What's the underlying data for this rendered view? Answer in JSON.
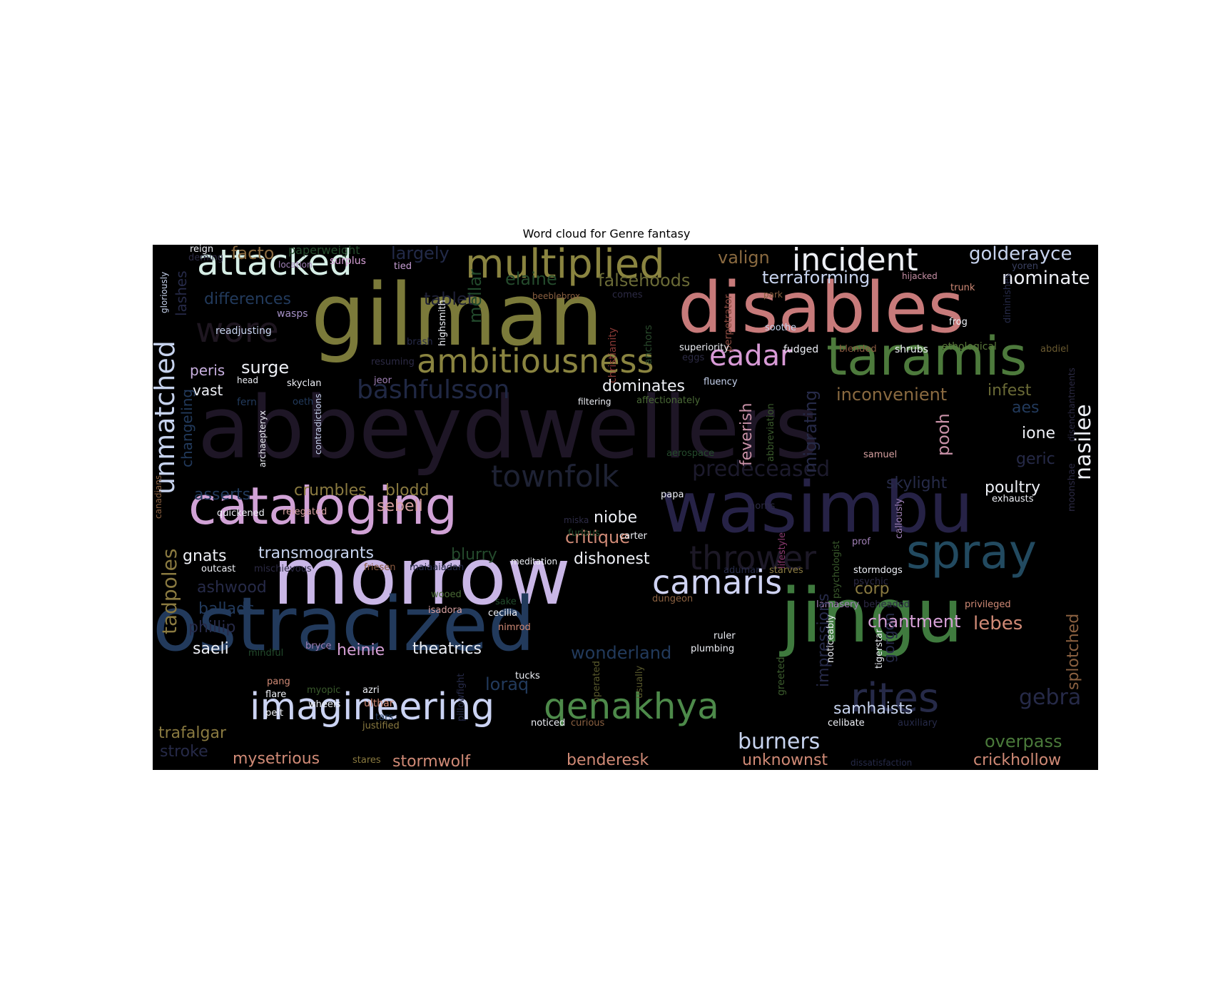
{
  "title": "Word cloud for Genre fantasy",
  "words": [
    {
      "text": "abbeydwellers",
      "color": "#1e1626"
    },
    {
      "text": "gilman",
      "color": "#7b7a3a"
    },
    {
      "text": "disables",
      "color": "#c77a7a"
    },
    {
      "text": "wasimbu",
      "color": "#262246"
    },
    {
      "text": "morrow",
      "color": "#c9b6e6"
    },
    {
      "text": "ostracized",
      "color": "#223a5c"
    },
    {
      "text": "jingu",
      "color": "#3f7a3e"
    },
    {
      "text": "cataloging",
      "color": "#d1a2d6"
    },
    {
      "text": "taramis",
      "color": "#4d7a3c"
    },
    {
      "text": "spray",
      "color": "#224a60"
    },
    {
      "text": "multiplied",
      "color": "#8a8440"
    },
    {
      "text": "attacked",
      "color": "#d6eee6"
    },
    {
      "text": "ambitiousness",
      "color": "#8a8440"
    },
    {
      "text": "incident",
      "color": "#eef0f6"
    },
    {
      "text": "wore",
      "color": "#1e1620"
    },
    {
      "text": "unmatched",
      "color": "#c7d3ee"
    },
    {
      "text": "camaris",
      "color": "#cfd3f3"
    },
    {
      "text": "imagineering",
      "color": "#cbd3f3"
    },
    {
      "text": "qenakhya",
      "color": "#4d8a4a"
    },
    {
      "text": "rites",
      "color": "#262a48"
    },
    {
      "text": "townfolk",
      "color": "#1e2234"
    },
    {
      "text": "thrower",
      "color": "#1c1826"
    },
    {
      "text": "predeceased",
      "color": "#1c1a2c"
    },
    {
      "text": "bashfulsson",
      "color": "#202844"
    },
    {
      "text": "eadar",
      "color": "#d89ad6"
    },
    {
      "text": "golderayce",
      "color": "#c7d3ee"
    },
    {
      "text": "nominate",
      "color": "#eef0f6"
    },
    {
      "text": "terraforming",
      "color": "#c7d3ee"
    },
    {
      "text": "valign",
      "color": "#8a6a40"
    },
    {
      "text": "elaine",
      "color": "#244a2c"
    },
    {
      "text": "falsehoods",
      "color": "#6a6a36"
    },
    {
      "text": "facto",
      "color": "#8a6a40"
    },
    {
      "text": "largely",
      "color": "#222a48"
    },
    {
      "text": "paperweight",
      "color": "#244a2c"
    },
    {
      "text": "reign",
      "color": "#eef0f6"
    },
    {
      "text": "deming",
      "color": "#2c2a44"
    },
    {
      "text": "differences",
      "color": "#223a5c"
    },
    {
      "text": "readjusting",
      "color": "#c7d3ee"
    },
    {
      "text": "wasps",
      "color": "#a590c6"
    },
    {
      "text": "location",
      "color": "#a080b6"
    },
    {
      "text": "surplus",
      "color": "#d6a0d6"
    },
    {
      "text": "tied",
      "color": "#c9a0d6"
    },
    {
      "text": "tablet",
      "color": "#1e2036"
    },
    {
      "text": "highsmith",
      "color": "#eef0f6"
    },
    {
      "text": "mellar",
      "color": "#224a2c"
    },
    {
      "text": "beeblebrox",
      "color": "#8a6040"
    },
    {
      "text": "christianity",
      "color": "#8a3a36"
    },
    {
      "text": "anchors",
      "color": "#2a4a2c"
    },
    {
      "text": "perpetrator",
      "color": "#8a4a40"
    },
    {
      "text": "park",
      "color": "#8a6040"
    },
    {
      "text": "soothe",
      "color": "#c7d3ee"
    },
    {
      "text": "hijacked",
      "color": "#c790a6"
    },
    {
      "text": "trunk",
      "color": "#d08a76"
    },
    {
      "text": "frog",
      "color": "#eef0f6"
    },
    {
      "text": "diminishes",
      "color": "#262a48"
    },
    {
      "text": "yoren",
      "color": "#3a4060"
    },
    {
      "text": "abdiel",
      "color": "#6a5a30"
    },
    {
      "text": "ethological",
      "color": "#5a7a3a"
    },
    {
      "text": "shrubs",
      "color": "#eef0f6"
    },
    {
      "text": "blended",
      "color": "#8a5a40"
    },
    {
      "text": "fudged",
      "color": "#eef0f6"
    },
    {
      "text": "superiority",
      "color": "#eef0f6"
    },
    {
      "text": "eggs",
      "color": "#2c2a44"
    },
    {
      "text": "fluency",
      "color": "#c7d3ee"
    },
    {
      "text": "affectionately",
      "color": "#4a6a36"
    },
    {
      "text": "filtering",
      "color": "#eef0f6"
    },
    {
      "text": "dominates",
      "color": "#eef0f6"
    },
    {
      "text": "surge",
      "color": "#eef0f6"
    },
    {
      "text": "peris",
      "color": "#c9b0e0"
    },
    {
      "text": "vast",
      "color": "#eef0f6"
    },
    {
      "text": "head",
      "color": "#eef0f6"
    },
    {
      "text": "skyclan",
      "color": "#eef0f6"
    },
    {
      "text": "jeor",
      "color": "#a080b6"
    },
    {
      "text": "fern",
      "color": "#223a5c"
    },
    {
      "text": "oeth",
      "color": "#223a5c"
    },
    {
      "text": "inconvenient",
      "color": "#8a6a40"
    },
    {
      "text": "infest",
      "color": "#6a6a36"
    },
    {
      "text": "aes",
      "color": "#223a5c"
    },
    {
      "text": "ione",
      "color": "#eef0f6"
    },
    {
      "text": "nasilee",
      "color": "#eef0f6"
    },
    {
      "text": "geric",
      "color": "#262a48"
    },
    {
      "text": "poultry",
      "color": "#eef0f6"
    },
    {
      "text": "exhausts",
      "color": "#eef0f6"
    },
    {
      "text": "skylight",
      "color": "#262a48"
    },
    {
      "text": "samuel",
      "color": "#d6a0a0"
    },
    {
      "text": "pooh",
      "color": "#c790a6"
    },
    {
      "text": "feverish",
      "color": "#c790a6"
    },
    {
      "text": "migrating",
      "color": "#262a48"
    },
    {
      "text": "abbreviation",
      "color": "#3a5a2c"
    },
    {
      "text": "aerospace",
      "color": "#244a2c"
    },
    {
      "text": "papa",
      "color": "#eef0f6"
    },
    {
      "text": "crumbles",
      "color": "#8a7a40"
    },
    {
      "text": "blodd",
      "color": "#8a7a40"
    },
    {
      "text": "sebell",
      "color": "#d6a0a0"
    },
    {
      "text": "asserts",
      "color": "#223a5c"
    },
    {
      "text": "quickened",
      "color": "#eef0f6"
    },
    {
      "text": "relegated",
      "color": "#d6a0a0"
    },
    {
      "text": "changeling",
      "color": "#223a5c"
    },
    {
      "text": "archaepteryx",
      "color": "#eef0f6"
    },
    {
      "text": "contradictions",
      "color": "#c7d3ee"
    },
    {
      "text": "niobe",
      "color": "#eef0f6"
    },
    {
      "text": "critique",
      "color": "#d08a76"
    },
    {
      "text": "dishonest",
      "color": "#eef0f6"
    },
    {
      "text": "carter",
      "color": "#eef0f6"
    },
    {
      "text": "furious",
      "color": "#224a2c"
    },
    {
      "text": "miska",
      "color": "#2c2a44"
    },
    {
      "text": "meditation",
      "color": "#eef0f6"
    },
    {
      "text": "blurry",
      "color": "#244a2c"
    },
    {
      "text": "transmogrants",
      "color": "#c7d3ee"
    },
    {
      "text": "gnats",
      "color": "#eef0f6"
    },
    {
      "text": "outcast",
      "color": "#eef0f6"
    },
    {
      "text": "mischievous",
      "color": "#2c2a44"
    },
    {
      "text": "friesen",
      "color": "#8a5a40"
    },
    {
      "text": "maiaaiadan",
      "color": "#262a48"
    },
    {
      "text": "tadpoles",
      "color": "#8a7a40"
    },
    {
      "text": "ashwood",
      "color": "#262a48"
    },
    {
      "text": "ballads",
      "color": "#223a5c"
    },
    {
      "text": "phillip",
      "color": "#262a48"
    },
    {
      "text": "saeli",
      "color": "#eef0f6"
    },
    {
      "text": "heinie",
      "color": "#d6a0d6"
    },
    {
      "text": "theatrics",
      "color": "#eef0f6"
    },
    {
      "text": "mindful",
      "color": "#224a2c"
    },
    {
      "text": "bryce",
      "color": "#a080b6"
    },
    {
      "text": "isadora",
      "color": "#d6a0a0"
    },
    {
      "text": "cecilia",
      "color": "#eef0f6"
    },
    {
      "text": "wooed",
      "color": "#4a6a36"
    },
    {
      "text": "sake",
      "color": "#224a2c"
    },
    {
      "text": "nimrod",
      "color": "#d08a76"
    },
    {
      "text": "dungeon",
      "color": "#8a6040"
    },
    {
      "text": "wonderland",
      "color": "#223a5c"
    },
    {
      "text": "plumbing",
      "color": "#eef0f6"
    },
    {
      "text": "ruler",
      "color": "#eef0f6"
    },
    {
      "text": "adumar",
      "color": "#262a48"
    },
    {
      "text": "starves",
      "color": "#8a7a40"
    },
    {
      "text": "lifestyle",
      "color": "#8a3a70"
    },
    {
      "text": "psychologist",
      "color": "#3a5a2c"
    },
    {
      "text": "prof",
      "color": "#a080b6"
    },
    {
      "text": "callously",
      "color": "#a080b6"
    },
    {
      "text": "norns",
      "color": "#2c2a44"
    },
    {
      "text": "psychic",
      "color": "#2c2a44"
    },
    {
      "text": "stormdogs",
      "color": "#eef0f6"
    },
    {
      "text": "corp",
      "color": "#8a7a40"
    },
    {
      "text": "lamasery",
      "color": "#a080b6"
    },
    {
      "text": "beheaded",
      "color": "#2c2a44"
    },
    {
      "text": "chantment",
      "color": "#d6a0d6"
    },
    {
      "text": "privileged",
      "color": "#d08a76"
    },
    {
      "text": "lebes",
      "color": "#d08a76"
    },
    {
      "text": "splotched",
      "color": "#8a6040"
    },
    {
      "text": "moonshae",
      "color": "#2c2a44"
    },
    {
      "text": "gebra",
      "color": "#262a48"
    },
    {
      "text": "impressions",
      "color": "#262a48"
    },
    {
      "text": "noticeably",
      "color": "#eef0f6"
    },
    {
      "text": "tigerstar",
      "color": "#eef0f6"
    },
    {
      "text": "gorgon",
      "color": "#262a48"
    },
    {
      "text": "greeted",
      "color": "#3a5a2c"
    },
    {
      "text": "samhaists",
      "color": "#c7d3ee"
    },
    {
      "text": "celibate",
      "color": "#eef0f6"
    },
    {
      "text": "auxiliary",
      "color": "#262a48"
    },
    {
      "text": "overpass",
      "color": "#4a7a3a"
    },
    {
      "text": "crickhollow",
      "color": "#d08a76"
    },
    {
      "text": "dissatisfaction",
      "color": "#262a48"
    },
    {
      "text": "unknownst",
      "color": "#d08a76"
    },
    {
      "text": "burners",
      "color": "#c7d3ee"
    },
    {
      "text": "benderesk",
      "color": "#d08a76"
    },
    {
      "text": "stormwolf",
      "color": "#d08a76"
    },
    {
      "text": "loraq",
      "color": "#223a5c"
    },
    {
      "text": "usually",
      "color": "#5a5a2c"
    },
    {
      "text": "operated",
      "color": "#5a5a2c"
    },
    {
      "text": "noticed",
      "color": "#eef0f6"
    },
    {
      "text": "curious",
      "color": "#8a6040"
    },
    {
      "text": "tucks",
      "color": "#eef0f6"
    },
    {
      "text": "azri",
      "color": "#eef0f6"
    },
    {
      "text": "ulthar",
      "color": "#d08a76"
    },
    {
      "text": "tars",
      "color": "#223a5c"
    },
    {
      "text": "justified",
      "color": "#8a7a40"
    },
    {
      "text": "pillowfight",
      "color": "#262a48"
    },
    {
      "text": "pang",
      "color": "#d08a76"
    },
    {
      "text": "myopic",
      "color": "#3a5a2c"
    },
    {
      "text": "flare",
      "color": "#eef0f6"
    },
    {
      "text": "wheels",
      "color": "#eef0f6"
    },
    {
      "text": "pelt",
      "color": "#eef0f6"
    },
    {
      "text": "trafalgar",
      "color": "#8a7a40"
    },
    {
      "text": "stroke",
      "color": "#262a48"
    },
    {
      "text": "mysetrious",
      "color": "#d08a76"
    },
    {
      "text": "stares",
      "color": "#8a7a40"
    },
    {
      "text": "canadians",
      "color": "#8a6040"
    },
    {
      "text": "gloriously",
      "color": "#c7d3ee"
    },
    {
      "text": "lashes",
      "color": "#262a48"
    },
    {
      "text": "brash",
      "color": "#262a48"
    },
    {
      "text": "resuming",
      "color": "#2c2a44"
    },
    {
      "text": "comes",
      "color": "#2c2a44"
    },
    {
      "text": "disenchantments",
      "color": "#2c2a44"
    }
  ]
}
